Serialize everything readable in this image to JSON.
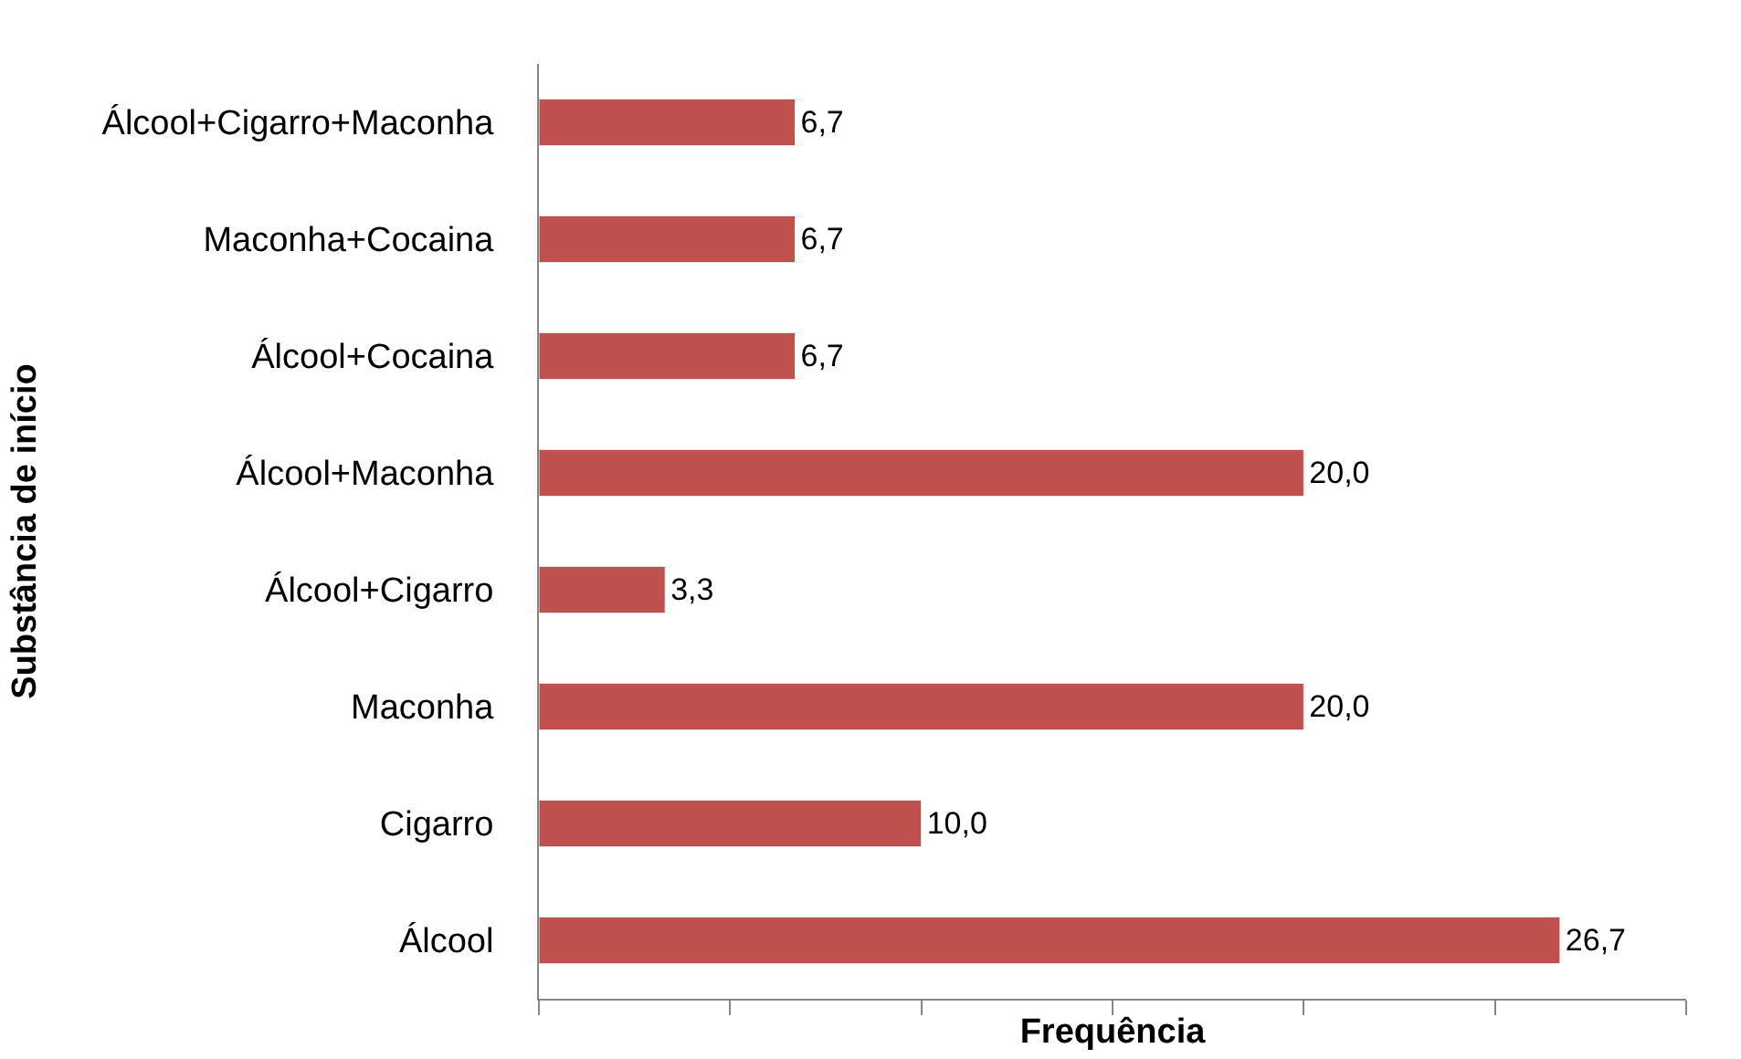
{
  "chart_data": {
    "type": "bar",
    "orientation": "horizontal",
    "xlabel": "Frequência",
    "ylabel": "Substância de início",
    "categories": [
      "Álcool+Cigarro+Maconha",
      "Maconha+Cocaina",
      "Álcool+Cocaina",
      "Álcool+Maconha",
      "Álcool+Cigarro",
      "Maconha",
      "Cigarro",
      "Álcool"
    ],
    "values": [
      6.7,
      6.7,
      6.7,
      20.0,
      3.3,
      20.0,
      10.0,
      26.7
    ],
    "value_labels": [
      "6,7",
      "6,7",
      "6,7",
      "20,0",
      "3,3",
      "20,0",
      "10,0",
      "26,7"
    ],
    "color": "#c0504d",
    "xlim": [
      0,
      30
    ],
    "xticks": [
      {
        "value": 0,
        "label": null
      },
      {
        "value": 5,
        "label": null
      },
      {
        "value": 10,
        "label": null
      },
      {
        "value": 15,
        "label": null
      },
      {
        "value": 20,
        "label": null
      },
      {
        "value": 25,
        "label": null
      },
      {
        "value": 30,
        "label": null
      }
    ],
    "legend": false
  }
}
